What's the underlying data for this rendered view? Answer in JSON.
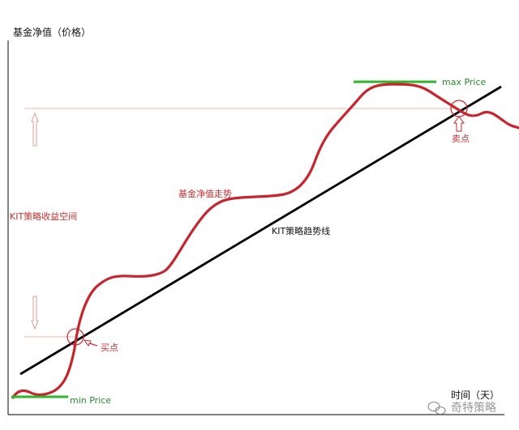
{
  "axes": {
    "y_label": "基金净值（价格）",
    "x_label": "时间（天）"
  },
  "labels": {
    "max_price": "max Price",
    "min_price": "min Price",
    "sell_point": "卖点",
    "buy_point": "买点",
    "nav_trend": "基金净值走势",
    "strategy_trend": "KIT策略趋势线",
    "profit_space": "KIT策略收益空间"
  },
  "watermark": {
    "text": "奇特策略",
    "icon": "wechat-icon"
  },
  "colors": {
    "nav_curve": "#c8242c",
    "trend_line": "#000000",
    "price_bar": "#2db52d",
    "guide_line": "#e8b8aa",
    "arrow": "#d9a090",
    "label_red": "#c83030"
  }
}
